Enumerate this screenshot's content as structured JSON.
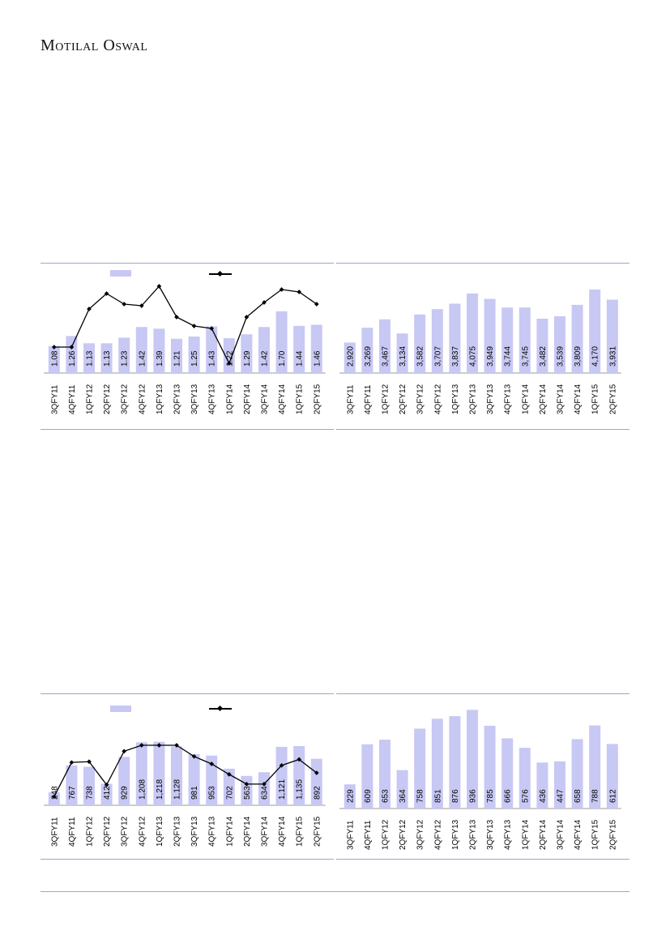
{
  "header": {
    "brand": "Motilal Oswal"
  },
  "chart_data": [
    {
      "type": "bar",
      "categories": [
        "3QFY11",
        "4QFY11",
        "1QFY12",
        "2QFY12",
        "3QFY12",
        "4QFY12",
        "1QFY13",
        "2QFY13",
        "3QFY13",
        "4QFY13",
        "1QFY14",
        "2QFY14",
        "3QFY14",
        "4QFY14",
        "1QFY15",
        "2QFY15"
      ],
      "values": [
        1.08,
        1.26,
        1.13,
        1.13,
        1.23,
        1.42,
        1.39,
        1.21,
        1.25,
        1.43,
        1.22,
        1.29,
        1.42,
        1.7,
        1.44,
        1.46
      ],
      "value_labels": [
        "1.08",
        "1.26",
        "1.13",
        "1.13",
        "1.23",
        "1.42",
        "1.39",
        "1.21",
        "1.25",
        "1.43",
        "1.22",
        "1.29",
        "1.42",
        "1.70",
        "1.44",
        "1.46"
      ],
      "line_values": [
        0.27,
        0.27,
        0.74,
        0.93,
        0.8,
        0.78,
        1.02,
        0.64,
        0.53,
        0.5,
        0.07,
        0.64,
        0.82,
        0.98,
        0.95,
        0.8
      ],
      "bar_color": "#c8c8f4",
      "line_color": "#000000",
      "legend_position": "top"
    },
    {
      "type": "bar",
      "categories": [
        "3QFY11",
        "4QFY11",
        "1QFY12",
        "2QFY12",
        "3QFY12",
        "4QFY12",
        "1QFY13",
        "2QFY13",
        "3QFY13",
        "4QFY13",
        "1QFY14",
        "2QFY14",
        "3QFY14",
        "4QFY14",
        "1QFY15",
        "2QFY15"
      ],
      "values": [
        2920,
        3269,
        3467,
        3134,
        3582,
        3707,
        3837,
        4075,
        3949,
        3744,
        3745,
        3482,
        3539,
        3809,
        4170,
        3931
      ],
      "value_labels": [
        "2,920",
        "3,269",
        "3,467",
        "3,134",
        "3,582",
        "3,707",
        "3,837",
        "4,075",
        "3,949",
        "3,744",
        "3,745",
        "3,482",
        "3,539",
        "3,809",
        "4,170",
        "3,931"
      ],
      "bar_color": "#c8c8f4"
    },
    {
      "type": "bar",
      "categories": [
        "3QFY11",
        "4QFY11",
        "1QFY12",
        "2QFY12",
        "3QFY12",
        "4QFY12",
        "1QFY13",
        "2QFY13",
        "3QFY13",
        "4QFY13",
        "1QFY14",
        "2QFY14",
        "3QFY14",
        "4QFY14",
        "1QFY15",
        "2QFY15"
      ],
      "values": [
        248,
        767,
        738,
        412,
        929,
        1208,
        1218,
        1128,
        981,
        953,
        702,
        563,
        634,
        1121,
        1135,
        892
      ],
      "value_labels": [
        "248",
        "767",
        "738",
        "412",
        "929",
        "1,208",
        "1,218",
        "1,128",
        "981",
        "953",
        "702",
        "563",
        "634",
        "1,121",
        "1,135",
        "892"
      ],
      "line_values": [
        0.06,
        0.52,
        0.53,
        0.22,
        0.67,
        0.75,
        0.75,
        0.75,
        0.6,
        0.5,
        0.36,
        0.23,
        0.23,
        0.48,
        0.56,
        0.38
      ],
      "bar_color": "#c8c8f4",
      "line_color": "#000000",
      "legend_position": "top"
    },
    {
      "type": "bar",
      "categories": [
        "3QFY11",
        "4QFY11",
        "1QFY12",
        "2QFY12",
        "3QFY12",
        "4QFY12",
        "1QFY13",
        "2QFY13",
        "3QFY13",
        "4QFY13",
        "1QFY14",
        "2QFY14",
        "3QFY14",
        "4QFY14",
        "1QFY15",
        "2QFY15"
      ],
      "values": [
        229,
        609,
        653,
        364,
        758,
        851,
        876,
        936,
        785,
        666,
        576,
        436,
        447,
        658,
        788,
        612
      ],
      "value_labels": [
        "229",
        "609",
        "653",
        "364",
        "758",
        "851",
        "876",
        "936",
        "785",
        "666",
        "576",
        "436",
        "447",
        "658",
        "788",
        "612"
      ],
      "bar_color": "#c8c8f4"
    }
  ]
}
